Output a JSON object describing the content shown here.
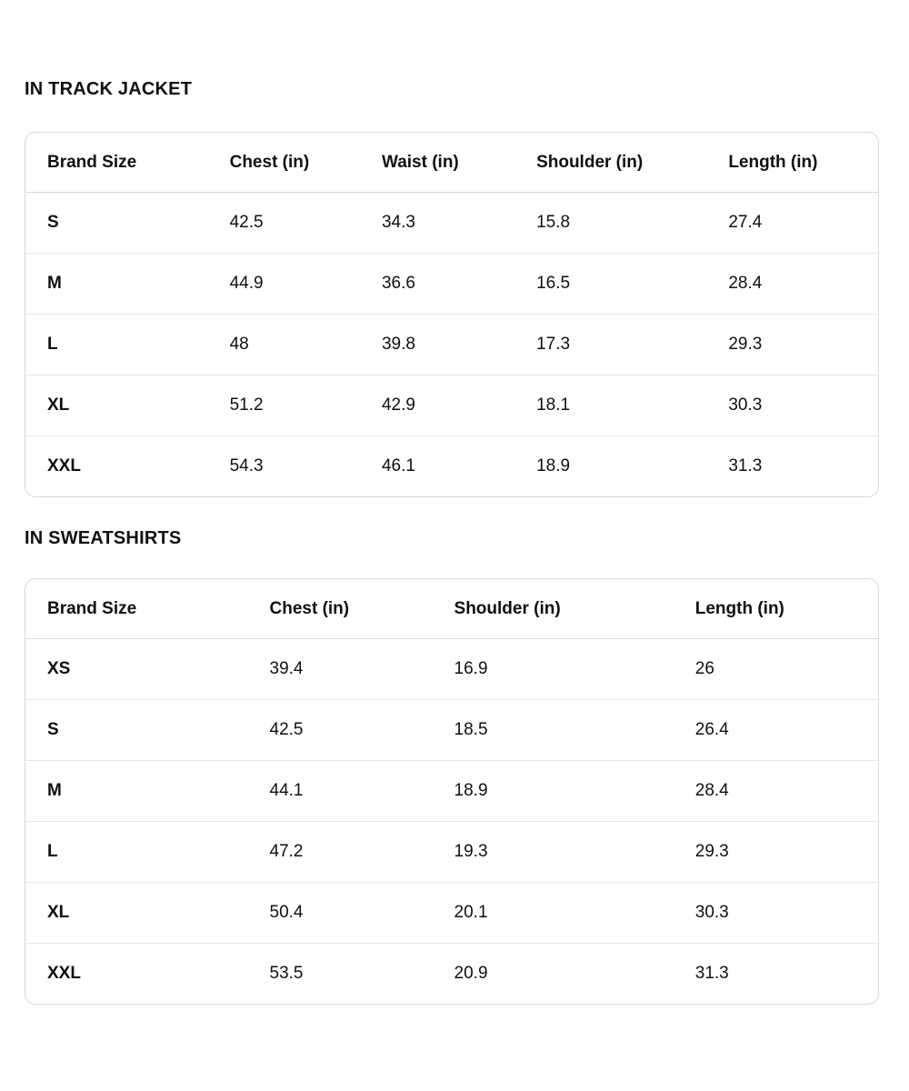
{
  "page": {
    "background": "#ffffff",
    "text_color": "#0F1111",
    "table_border_color": "#d5d9d9",
    "row_divider_color": "#e7e7e7"
  },
  "tables": [
    {
      "title": "IN TRACK JACKET",
      "columns": [
        "Brand Size",
        "Chest (in)",
        "Waist (in)",
        "Shoulder (in)",
        "Length (in)"
      ],
      "rows": [
        [
          "S",
          "42.5",
          "34.3",
          "15.8",
          "27.4"
        ],
        [
          "M",
          "44.9",
          "36.6",
          "16.5",
          "28.4"
        ],
        [
          "L",
          "48",
          "39.8",
          "17.3",
          "29.3"
        ],
        [
          "XL",
          "51.2",
          "42.9",
          "18.1",
          "30.3"
        ],
        [
          "XXL",
          "54.3",
          "46.1",
          "18.9",
          "31.3"
        ]
      ]
    },
    {
      "title": "IN SWEATSHIRTS",
      "columns": [
        "Brand Size",
        "Chest (in)",
        "Shoulder (in)",
        "Length (in)"
      ],
      "rows": [
        [
          "XS",
          "39.4",
          "16.9",
          "26"
        ],
        [
          "S",
          "42.5",
          "18.5",
          "26.4"
        ],
        [
          "M",
          "44.1",
          "18.9",
          "28.4"
        ],
        [
          "L",
          "47.2",
          "19.3",
          "29.3"
        ],
        [
          "XL",
          "50.4",
          "20.1",
          "30.3"
        ],
        [
          "XXL",
          "53.5",
          "20.9",
          "31.3"
        ]
      ]
    }
  ]
}
